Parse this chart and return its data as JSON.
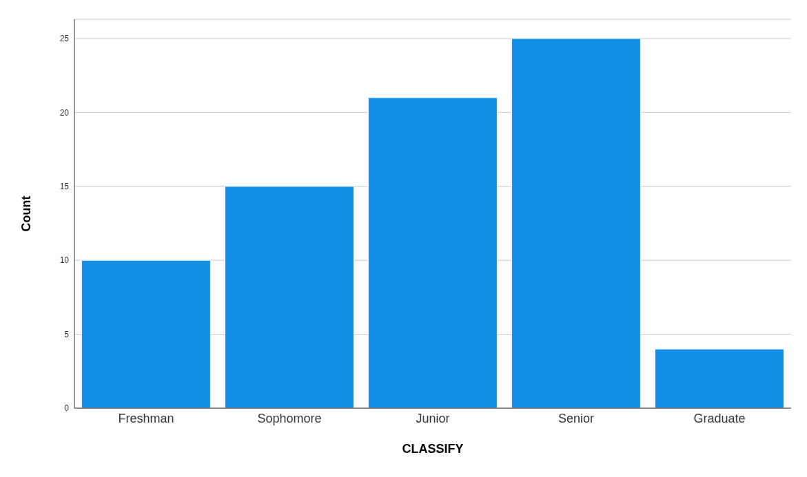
{
  "chart_data": {
    "type": "bar",
    "xlabel": "CLASSIFY",
    "ylabel": "Count",
    "categories": [
      "Freshman",
      "Sophomore",
      "Junior",
      "Senior",
      "Graduate"
    ],
    "values": [
      10,
      15,
      21,
      25,
      4
    ],
    "color": "#1390e6",
    "ylim": [
      0,
      26.3
    ],
    "yticks": [
      0,
      5,
      10,
      15,
      20,
      25
    ],
    "grid": "y"
  }
}
